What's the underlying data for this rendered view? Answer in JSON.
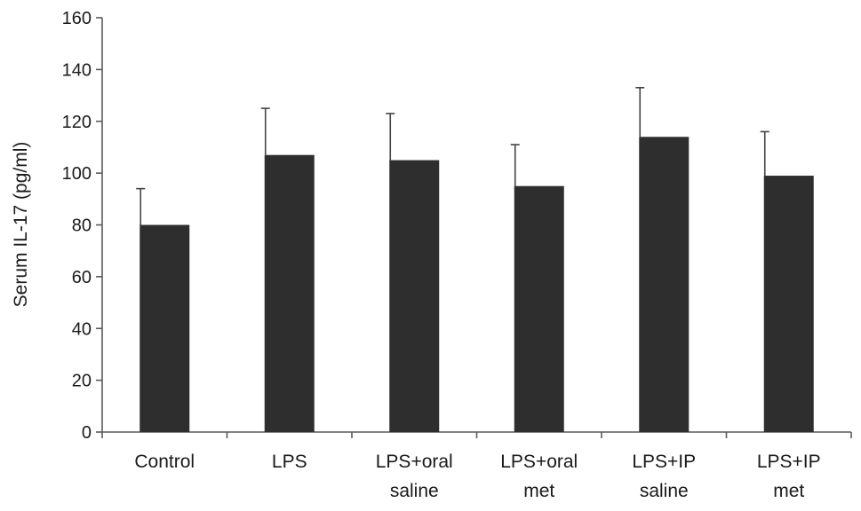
{
  "chart_data": {
    "type": "bar",
    "title": "",
    "xlabel": "",
    "ylabel": "Serum IL-17 (pg/ml)",
    "ylim": [
      0,
      160
    ],
    "yticks": [
      0,
      20,
      40,
      60,
      80,
      100,
      120,
      140,
      160
    ],
    "grid": false,
    "legend": "none",
    "categories": [
      [
        "Control"
      ],
      [
        "LPS"
      ],
      [
        "LPS+oral",
        "saline"
      ],
      [
        "LPS+oral",
        "met"
      ],
      [
        "LPS+IP",
        "saline"
      ],
      [
        "LPS+IP",
        "met"
      ]
    ],
    "values": [
      80,
      107,
      105,
      95,
      114,
      99
    ],
    "error_upper": [
      14,
      18,
      18,
      16,
      19,
      17
    ],
    "colors": {
      "bar": "#2e2e2e",
      "axis": "#5a5a5a",
      "text": "#1a1a1a"
    }
  }
}
